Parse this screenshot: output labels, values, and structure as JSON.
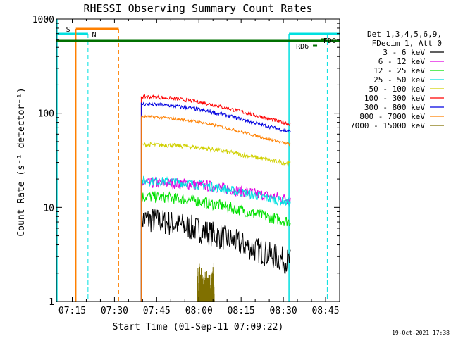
{
  "chart_data": {
    "type": "line",
    "title": "RHESSI Observing Summary Count Rates",
    "xlabel": "Start Time (01-Sep-11 07:09:22)",
    "ylabel": "Count Rate (s⁻¹ detector⁻¹)",
    "yscale": "log",
    "ylim": [
      1,
      1000
    ],
    "xlim_minutes": [
      429.37,
      530
    ],
    "x_ticks": [
      {
        "t": 435,
        "label": "07:15"
      },
      {
        "t": 450,
        "label": "07:30"
      },
      {
        "t": 465,
        "label": "07:45"
      },
      {
        "t": 480,
        "label": "08:00"
      },
      {
        "t": 495,
        "label": "08:15"
      },
      {
        "t": 510,
        "label": "08:30"
      },
      {
        "t": 525,
        "label": "08:45"
      }
    ],
    "y_ticks": [
      {
        "v": 1,
        "label": "1"
      },
      {
        "v": 10,
        "label": "10"
      },
      {
        "v": 100,
        "label": "100"
      },
      {
        "v": 1000,
        "label": "1000"
      }
    ],
    "data_span_minutes": [
      459.5,
      512.5
    ],
    "legend_header": [
      "Det 1,3,4,5,6,9,",
      "FDecim 1, Att 0"
    ],
    "series": [
      {
        "name": "3 - 6 keV",
        "color": "#000000",
        "y_start": 7.5,
        "y_end": 2.8
      },
      {
        "name": "6 - 12 keV",
        "color": "#e000e0",
        "y_start": 18,
        "y_end": 13
      },
      {
        "name": "12 - 25 keV",
        "color": "#00e000",
        "y_start": 13,
        "y_end": 7.5
      },
      {
        "name": "25 - 50 keV",
        "color": "#00e0e0",
        "y_start": 19,
        "y_end": 12
      },
      {
        "name": "50 - 100 keV",
        "color": "#d0d000",
        "y_start": 46,
        "y_end": 31
      },
      {
        "name": "100 - 300 keV",
        "color": "#ff0000",
        "y_start": 150,
        "y_end": 82
      },
      {
        "name": "300 - 800 keV",
        "color": "#0000e0",
        "y_start": 125,
        "y_end": 68
      },
      {
        "name": "800 - 7000 keV",
        "color": "#ff8000",
        "y_start": 92,
        "y_end": 50
      },
      {
        "name": "7000 - 15000 keV",
        "color": "#807000",
        "y_start": 2.2,
        "y_end": 2.2
      }
    ],
    "annotations": {
      "S_label": "S",
      "N_label": "N",
      "RD6_label": "RD6",
      "FDO_label": "FDO"
    },
    "timestamp": "19-Oct-2021 17:38"
  }
}
